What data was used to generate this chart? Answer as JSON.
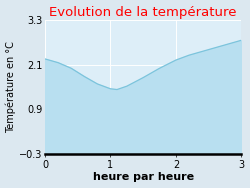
{
  "title": "Evolution de la température",
  "title_color": "#ff0000",
  "xlabel": "heure par heure",
  "ylabel": "Température en °C",
  "x": [
    0,
    0.2,
    0.4,
    0.6,
    0.8,
    1.0,
    1.1,
    1.25,
    1.5,
    1.75,
    2.0,
    2.2,
    2.4,
    2.6,
    2.8,
    3.0
  ],
  "y": [
    2.25,
    2.15,
    2.0,
    1.78,
    1.58,
    1.45,
    1.43,
    1.52,
    1.75,
    2.0,
    2.22,
    2.35,
    2.45,
    2.55,
    2.65,
    2.75
  ],
  "ylim": [
    -0.3,
    3.3
  ],
  "xlim": [
    0,
    3
  ],
  "yticks": [
    -0.3,
    0.9,
    2.1,
    3.3
  ],
  "xticks": [
    0,
    1,
    2,
    3
  ],
  "fill_color": "#b8dff0",
  "line_color": "#7cc4dc",
  "background_color": "#dce8f0",
  "plot_bg_color": "#ddeef8",
  "title_fontsize": 9.5,
  "xlabel_fontsize": 8,
  "ylabel_fontsize": 7,
  "tick_fontsize": 7
}
